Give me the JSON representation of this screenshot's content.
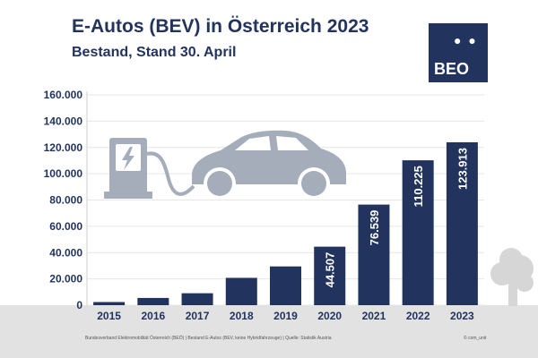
{
  "header": {
    "title": "E-Autos (BEV) in Österreich 2023",
    "subtitle": "Bestand, Stand 30. April"
  },
  "logo": {
    "dots": "● ●",
    "text": "BEO"
  },
  "footer": {
    "source": "Bundesverband Elektromobilität Österreich (BEÖ) | Bestand E-Autos (BEV, keine Hybridfahrzeuge) | Quelle: Statistik Austria",
    "credit": "© com_unit"
  },
  "colors": {
    "bar": "#22335e",
    "illustration": "#a5acba",
    "ground": "#e2e2e2",
    "text": "#22335e"
  },
  "icons": [
    "charging-station-icon",
    "car-icon",
    "tree-icon"
  ],
  "chart_data": {
    "type": "bar",
    "categories": [
      "2015",
      "2016",
      "2017",
      "2018",
      "2019",
      "2020",
      "2021",
      "2022",
      "2023"
    ],
    "values": [
      2400,
      5500,
      9100,
      20800,
      29500,
      44507,
      76539,
      110225,
      123913
    ],
    "value_labels": [
      "",
      "",
      "",
      "",
      "",
      "44.507",
      "76.539",
      "110.225",
      "123.913"
    ],
    "yticks": [
      "0",
      "20.000",
      "40.000",
      "60.000",
      "80.000",
      "100.000",
      "120.000",
      "140.000",
      "160.000"
    ],
    "ylim": [
      0,
      160000
    ],
    "grid": true,
    "xlabel": "",
    "ylabel": ""
  }
}
